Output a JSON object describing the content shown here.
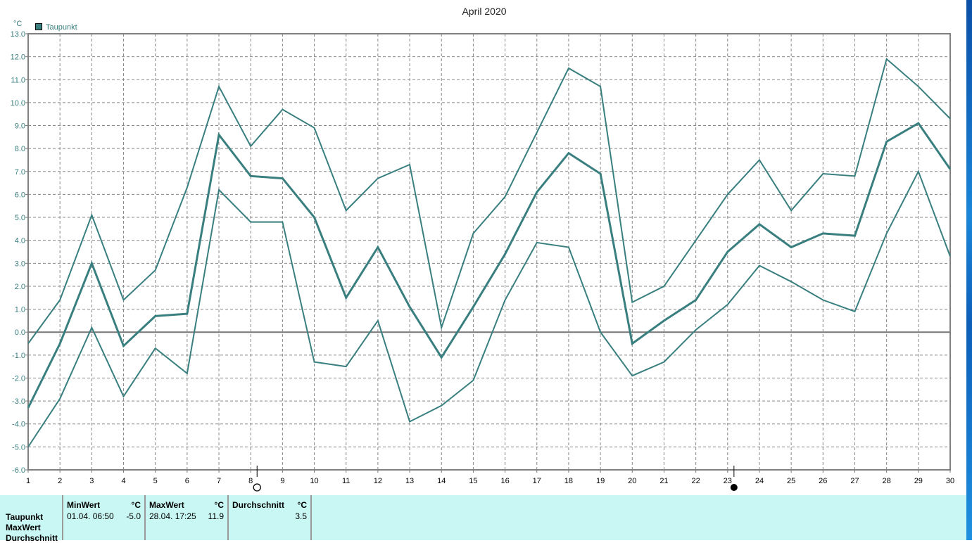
{
  "chart_data": {
    "type": "line",
    "title": "April 2020",
    "ylabel": "°C",
    "legend": {
      "label": "Taupunkt",
      "color": "#3a7f7f",
      "placement": "top-left"
    },
    "x": [
      1,
      2,
      3,
      4,
      5,
      6,
      7,
      8,
      9,
      10,
      11,
      12,
      13,
      14,
      15,
      16,
      17,
      18,
      19,
      20,
      21,
      22,
      23,
      24,
      25,
      26,
      27,
      28,
      29,
      30
    ],
    "xlim": [
      1,
      30
    ],
    "ylim": [
      -6.0,
      13.0
    ],
    "yticks": [
      "13.0",
      "12.0",
      "11.0",
      "10.0",
      "9.0",
      "8.0",
      "7.0",
      "6.0",
      "5.0",
      "4.0",
      "3.0",
      "2.0",
      "1.0",
      "0.0",
      "-1.0",
      "-2.0",
      "-3.0",
      "-4.0",
      "-5.0",
      "-6.0"
    ],
    "grid": true,
    "series": [
      {
        "role": "max",
        "values": [
          -0.5,
          1.4,
          5.1,
          1.4,
          2.7,
          6.3,
          10.7,
          8.1,
          9.7,
          8.9,
          5.3,
          6.7,
          7.3,
          0.2,
          4.3,
          5.9,
          8.7,
          11.5,
          10.7,
          1.3,
          2.0,
          4.0,
          6.0,
          7.5,
          5.3,
          6.9,
          6.8,
          11.9,
          10.7,
          9.3
        ]
      },
      {
        "role": "avg",
        "values": [
          -3.3,
          -0.5,
          3.0,
          -0.6,
          0.7,
          0.8,
          8.6,
          6.8,
          6.7,
          5.0,
          1.5,
          3.7,
          1.1,
          -1.1,
          1.1,
          3.4,
          6.1,
          7.8,
          6.9,
          -0.5,
          0.5,
          1.4,
          3.5,
          4.7,
          3.7,
          4.3,
          4.2,
          8.3,
          9.1,
          7.1
        ]
      },
      {
        "role": "min",
        "values": [
          -5.0,
          -2.9,
          0.2,
          -2.8,
          -0.7,
          -1.8,
          6.2,
          4.8,
          4.8,
          -1.3,
          -1.5,
          0.5,
          -3.9,
          -3.2,
          -2.1,
          1.4,
          3.9,
          3.7,
          0.0,
          -1.9,
          -1.3,
          0.1,
          1.2,
          2.9,
          2.2,
          1.4,
          0.9,
          4.3,
          7.0,
          3.3
        ]
      }
    ],
    "moon_phases": [
      {
        "day": 8.2,
        "phase": "full-moon"
      },
      {
        "day": 23.2,
        "phase": "new-moon"
      }
    ]
  },
  "table": {
    "row_labels": [
      "Taupunkt",
      "MaxWert",
      "Durchschnitt"
    ],
    "unit": "°C",
    "min": {
      "header": "MinWert",
      "date": "01.04.  06:50",
      "value": "-5.0"
    },
    "max": {
      "header": "MaxWert",
      "date": "28.04.  17:25",
      "value": "11.9"
    },
    "avg": {
      "header": "Durchschnitt",
      "value": "3.5"
    }
  }
}
